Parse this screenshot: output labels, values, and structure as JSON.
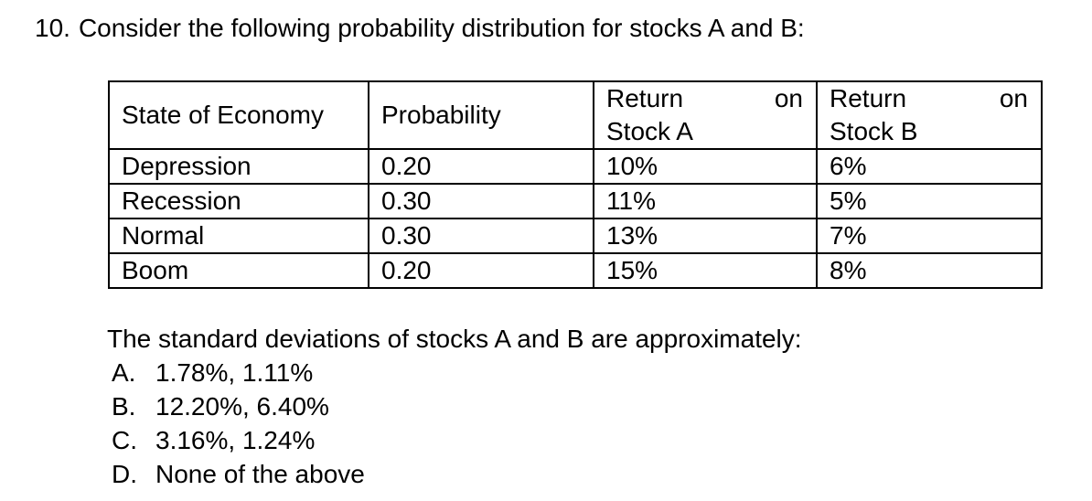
{
  "question": {
    "number": "10.",
    "text": "Consider the following probability distribution for stocks A and B:"
  },
  "table": {
    "headers": {
      "state": "State of Economy",
      "probability": "Probability",
      "return_a": {
        "word1": "Return",
        "word2": "on",
        "line2": "Stock A"
      },
      "return_b": {
        "word1": "Return",
        "word2": "on",
        "line2": "Stock B"
      }
    },
    "rows": [
      {
        "state": "Depression",
        "probability": "0.20",
        "return_a": "10%",
        "return_b": "6%"
      },
      {
        "state": "Recession",
        "probability": "0.30",
        "return_a": "11%",
        "return_b": "5%"
      },
      {
        "state": "Normal",
        "probability": "0.30",
        "return_a": "13%",
        "return_b": "7%"
      },
      {
        "state": "Boom",
        "probability": "0.20",
        "return_a": "15%",
        "return_b": "8%"
      }
    ]
  },
  "problem": {
    "prompt": "The standard deviations of stocks A and B are approximately:",
    "options": [
      {
        "letter": "A.",
        "text": "1.78%, 1.11%"
      },
      {
        "letter": "B.",
        "text": "12.20%, 6.40%"
      },
      {
        "letter": "C.",
        "text": "3.16%, 1.24%"
      },
      {
        "letter": "D.",
        "text": "None of the above"
      }
    ]
  }
}
